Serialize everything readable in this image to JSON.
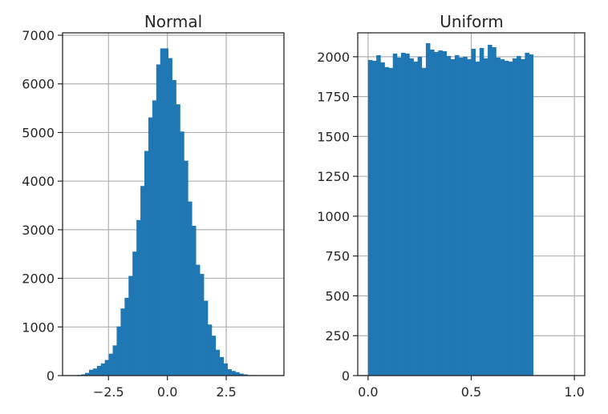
{
  "chart_data": [
    {
      "type": "bar",
      "title": "Normal",
      "xlabel": "",
      "ylabel": "",
      "color": "#1f77b4",
      "grid": true,
      "xlim": [
        -4.45,
        4.95
      ],
      "ylim": [
        0,
        7050
      ],
      "xticks": [
        -2.5,
        0.0,
        2.5
      ],
      "xtick_labels": [
        "−2.5",
        "0.0",
        "2.5"
      ],
      "yticks": [
        0,
        1000,
        2000,
        3000,
        4000,
        5000,
        6000,
        7000
      ],
      "ytick_labels": [
        "0",
        "1000",
        "2000",
        "3000",
        "4000",
        "5000",
        "6000",
        "7000"
      ],
      "bin_start": -4.0,
      "bin_width": 0.168,
      "values": [
        5,
        12,
        25,
        55,
        120,
        145,
        200,
        250,
        320,
        450,
        620,
        1010,
        1380,
        1600,
        2050,
        2550,
        3200,
        3900,
        4620,
        5310,
        5660,
        6400,
        6730,
        6730,
        6530,
        6080,
        5580,
        5020,
        4420,
        3580,
        3080,
        2280,
        2090,
        1540,
        1050,
        820,
        530,
        380,
        250,
        130,
        95,
        70,
        40,
        25,
        10,
        5,
        2,
        1
      ]
    },
    {
      "type": "bar",
      "title": "Uniform",
      "xlabel": "",
      "ylabel": "",
      "color": "#1f77b4",
      "grid": true,
      "xlim": [
        -0.05,
        1.05
      ],
      "ylim": [
        0,
        2150
      ],
      "xticks": [
        0.0,
        0.5,
        1.0
      ],
      "xtick_labels": [
        "0.0",
        "0.5",
        "1.0"
      ],
      "yticks": [
        0,
        250,
        500,
        750,
        1000,
        1250,
        1500,
        1750,
        2000
      ],
      "ytick_labels": [
        "0",
        "250",
        "500",
        "750",
        "1000",
        "1250",
        "1500",
        "1750",
        "2000"
      ],
      "bin_start": 0.0,
      "bin_width": 0.02,
      "values": [
        1980,
        1975,
        2010,
        1965,
        1935,
        1930,
        2020,
        1995,
        2025,
        2020,
        1990,
        1970,
        2000,
        1930,
        2085,
        2045,
        2030,
        2040,
        2035,
        2005,
        1985,
        2010,
        1995,
        2000,
        1985,
        2050,
        1970,
        2055,
        1990,
        2075,
        2060,
        1995,
        1985,
        1975,
        1970,
        1990,
        2005,
        1985,
        2025,
        2015
      ]
    }
  ]
}
